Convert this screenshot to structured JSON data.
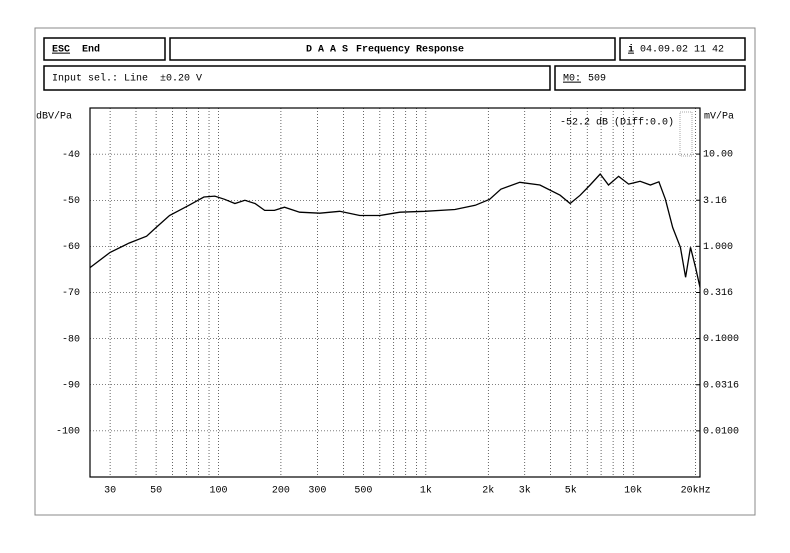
{
  "header": {
    "esc_key": "ESC",
    "esc_label": "End",
    "title_prefix": "D A A S",
    "title": "Frequency Response",
    "info_key": "i",
    "datetime": "04.09.02 11 42",
    "input_label": "Input sel.: Line",
    "input_range": "±0.20 V",
    "m0_key": "M0:",
    "m0_value": "509"
  },
  "chart_data": {
    "type": "line",
    "annotation": "-52.2 dB (Diff:0.0)",
    "ylabel": "dBV/Pa",
    "y2label": "mV/Pa",
    "color": "#000000",
    "x": [
      24,
      30,
      37,
      45,
      50,
      58,
      72,
      85,
      96,
      107,
      120,
      134,
      150,
      167,
      186,
      208,
      246,
      308,
      384,
      480,
      600,
      750,
      990,
      1380,
      1730,
      2030,
      2300,
      2840,
      3550,
      4440,
      4960,
      5550,
      6200,
      6930,
      7600,
      8500,
      9500,
      10800,
      12100,
      13300,
      14300,
      15500,
      16900,
      17900,
      18900,
      20000,
      21000
    ],
    "values": [
      -64.6,
      -61.3,
      -59.3,
      -57.8,
      -55.9,
      -53.3,
      -51.1,
      -49.3,
      -49.1,
      -49.8,
      -50.7,
      -50.0,
      -50.7,
      -52.2,
      -52.2,
      -51.5,
      -52.6,
      -52.8,
      -52.4,
      -53.3,
      -53.3,
      -52.6,
      -52.4,
      -52.0,
      -51.1,
      -49.8,
      -47.6,
      -46.1,
      -46.7,
      -48.9,
      -50.7,
      -48.9,
      -46.7,
      -44.3,
      -46.7,
      -44.8,
      -46.5,
      -45.9,
      -46.7,
      -46.0,
      -49.8,
      -55.9,
      -60.2,
      -66.7,
      -60.2,
      -64.6,
      -68.9
    ],
    "xlog": true,
    "xlim": [
      24,
      21000
    ],
    "xticks": [
      30,
      50,
      100,
      200,
      300,
      500,
      {
        "value": 1000,
        "label": "1k"
      },
      {
        "value": 2000,
        "label": "2k"
      },
      {
        "value": 3000,
        "label": "3k"
      },
      {
        "value": 5000,
        "label": "5k"
      },
      {
        "value": 10000,
        "label": "10k"
      },
      {
        "value": 20000,
        "label": "20kHz"
      }
    ],
    "xminorticks": [
      40,
      60,
      70,
      80,
      90,
      400,
      600,
      700,
      800,
      900,
      4000,
      6000,
      7000,
      8000,
      9000
    ],
    "ylim": [
      -110,
      -30
    ],
    "yticks": [
      -40,
      -50,
      -60,
      -70,
      -80,
      -90,
      -100
    ],
    "y2log": true,
    "y2lim": [
      0.00316,
      31.6
    ],
    "y2ticks": [
      {
        "value": 10,
        "label": "10.00"
      },
      3.16,
      {
        "value": 1,
        "label": "1.000"
      },
      0.316,
      {
        "value": 0.1,
        "label": "0.1000"
      },
      0.0316,
      {
        "value": 0.01,
        "label": "0.0100"
      }
    ],
    "grid": true
  }
}
